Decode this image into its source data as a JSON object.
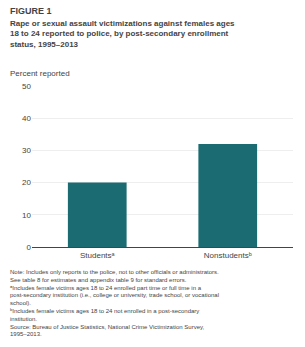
{
  "chart_data": {
    "type": "bar",
    "title": "FIGURE 1",
    "subtitle": [
      "Rape or sexual assault victimizations against females ages",
      "18 to 24 reported to police, by post-secondary enrollment",
      "status, 1995–2013"
    ],
    "ylabel": "Percent reported",
    "categories": [
      "Studentsᵃ",
      "Nonstudentsᵇ"
    ],
    "values": [
      20,
      32
    ],
    "color": "#1a6b72",
    "ylim": [
      0,
      50
    ],
    "yticks": [
      0,
      10,
      20,
      30,
      40,
      50
    ],
    "grid": true,
    "annotations": [
      "Note: Includes only reports to the police, not to other officials or administrators.",
      "See table 8 for estimates and appendix table 9 for standard errors.",
      "ᵃIncludes female victims ages 18 to 24 enrolled part time or full time in a",
      "post-secondary institution (i.e., college or university, trade school, or vocational",
      "school).",
      "ᵇIncludes female victims ages 18 to 24 not enrolled in a post-secondary",
      "institution.",
      "Source: Bureau of Justice Statistics, National Crime Victimization Survey,",
      "1995–2013."
    ]
  }
}
